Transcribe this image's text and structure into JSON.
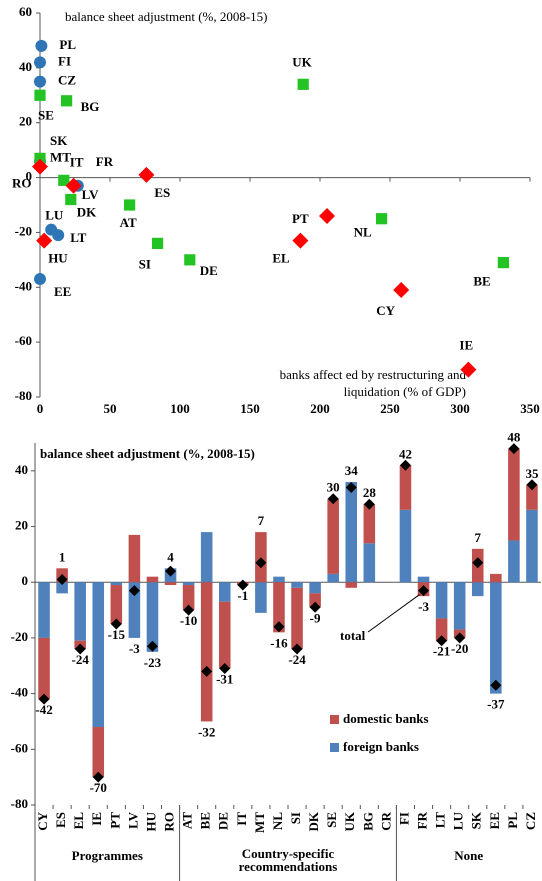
{
  "chart_data": [
    {
      "type": "scatter",
      "y_label": "balance sheet adjustment (%, 2008-15)",
      "x_label": [
        "banks affect ed by restructuring and",
        "liquidation (% of GDP)"
      ],
      "xlim": [
        0,
        350
      ],
      "xticks": [
        0,
        50,
        100,
        150,
        200,
        250,
        300,
        350
      ],
      "ylim": [
        -80,
        60
      ],
      "yticks": [
        -80,
        -60,
        -40,
        -20,
        0,
        20,
        40,
        60
      ],
      "series": [
        {
          "marker": "circle",
          "color": "#2e75b6",
          "labels": [
            "PL",
            "FI",
            "CZ",
            "SK",
            "FR",
            "LU",
            "LT",
            "EE"
          ],
          "x": [
            1,
            0,
            0,
            0,
            27,
            8,
            13,
            0
          ],
          "y": [
            48,
            42,
            35,
            6,
            -3,
            -19,
            -21,
            -37
          ]
        },
        {
          "marker": "square",
          "color": "#22c322",
          "labels": [
            "SE",
            "BG",
            "MT",
            "IT",
            "DK",
            "AT",
            "SI",
            "DE",
            "UK",
            "NL",
            "BE"
          ],
          "x": [
            0,
            19,
            0,
            17,
            22,
            64,
            84,
            107,
            188,
            244,
            331
          ],
          "y": [
            30,
            28,
            7,
            -1,
            -8,
            -10,
            -24,
            -30,
            34,
            -15,
            -31
          ]
        },
        {
          "marker": "diamond",
          "color": "#ff0000",
          "labels": [
            "RO",
            "LV",
            "ES",
            "HU",
            "PT",
            "EL",
            "CY",
            "IE"
          ],
          "x": [
            0,
            24,
            76,
            3,
            205,
            186,
            258,
            306
          ],
          "y": [
            4,
            -3,
            1,
            -23,
            -14,
            -23,
            -41,
            -70
          ]
        }
      ]
    },
    {
      "type": "bar",
      "stacked": true,
      "y_label": "balance sheet adjustment (%, 2008-15)",
      "ylim": [
        -80,
        50
      ],
      "yticks": [
        -80,
        -60,
        -40,
        -20,
        0,
        20,
        40
      ],
      "category_groups": [
        {
          "label": [
            "Programmes"
          ],
          "categories": [
            "CY",
            "ES",
            "EL",
            "IE",
            "PT",
            "LV",
            "HU",
            "RO"
          ]
        },
        {
          "label": [
            "Country-specific",
            "recommendations"
          ],
          "categories": [
            "AT",
            "BE",
            "DE",
            "IT",
            "MT",
            "NL",
            "SI",
            "DK",
            "SE",
            "UK",
            "BG",
            "CR"
          ]
        },
        {
          "label": [
            "None"
          ],
          "categories": [
            "FI",
            "FR",
            "LT",
            "LU",
            "SK",
            "EE",
            "PL",
            "CZ"
          ]
        }
      ],
      "series": [
        {
          "name": "domestic banks",
          "color": "#c0504d",
          "values": [
            -22,
            5,
            -3,
            -18,
            -14,
            17,
            2,
            -1,
            -9,
            -50,
            -24,
            -1,
            18,
            -18,
            -22,
            -5,
            27,
            -2,
            14,
            null,
            16,
            -5,
            -8,
            -3,
            12,
            3,
            33,
            9
          ]
        },
        {
          "name": "foreign banks",
          "color": "#4f81bd",
          "values": [
            -20,
            -4,
            -21,
            -52,
            -1,
            -20,
            -25,
            5,
            -1,
            18,
            -7,
            0,
            -11,
            2,
            -2,
            -4,
            3,
            36,
            14,
            null,
            26,
            2,
            -13,
            -17,
            -5,
            -40,
            15,
            26
          ]
        },
        {
          "name": "total",
          "type": "marker",
          "marker": "diamond",
          "color": "#000000",
          "values": [
            -42,
            1,
            -24,
            -70,
            -15,
            -3,
            -23,
            4,
            -10,
            -32,
            -31,
            -1,
            7,
            -16,
            -24,
            -9,
            30,
            34,
            28,
            null,
            42,
            -3,
            -21,
            -20,
            7,
            -37,
            48,
            35
          ]
        }
      ]
    }
  ]
}
